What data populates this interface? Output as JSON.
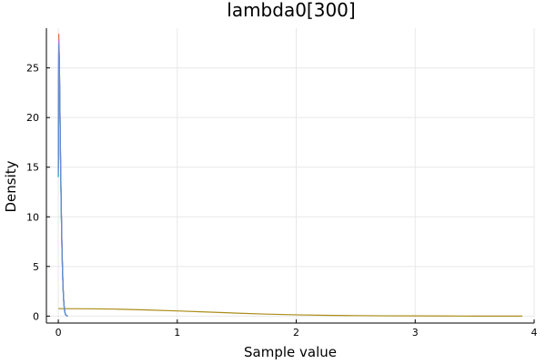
{
  "chart_data": {
    "type": "line",
    "title": "lambda0[300]",
    "xlabel": "Sample value",
    "ylabel": "Density",
    "xlim": [
      -0.1,
      4.0
    ],
    "ylim": [
      -0.7,
      29.0
    ],
    "xticks": [
      0,
      1,
      2,
      3,
      4
    ],
    "yticks": [
      0,
      5,
      10,
      15,
      20,
      25
    ],
    "grid": true,
    "legend": "none",
    "series": [
      {
        "color": "#e26f46",
        "x": [
          0.0,
          0.004,
          0.008,
          0.012,
          0.016,
          0.02,
          0.025,
          0.03,
          0.035,
          0.04,
          0.045,
          0.05,
          0.055,
          0.06,
          0.065,
          0.07,
          0.075,
          0.08
        ],
        "y": [
          15.0,
          28.4,
          26.5,
          23.0,
          19.0,
          15.0,
          11.0,
          7.6,
          5.0,
          3.0,
          1.7,
          0.9,
          0.45,
          0.2,
          0.1,
          0.05,
          0.02,
          0.0
        ]
      },
      {
        "color": "#3da44d",
        "x": [
          0.0,
          0.004,
          0.008,
          0.012,
          0.016,
          0.02,
          0.025,
          0.03,
          0.035,
          0.04,
          0.045,
          0.05,
          0.055,
          0.06,
          0.065,
          0.07,
          0.075,
          0.08
        ],
        "y": [
          14.5,
          27.3,
          26.0,
          22.5,
          18.6,
          14.6,
          10.7,
          7.3,
          4.8,
          2.9,
          1.6,
          0.85,
          0.4,
          0.18,
          0.08,
          0.04,
          0.01,
          0.0
        ]
      },
      {
        "color": "#c271d2",
        "x": [
          0.0,
          0.004,
          0.008,
          0.012,
          0.016,
          0.02,
          0.025,
          0.03,
          0.035,
          0.04,
          0.045,
          0.05,
          0.055,
          0.06,
          0.065,
          0.07,
          0.075,
          0.08
        ],
        "y": [
          14.8,
          27.8,
          26.2,
          22.8,
          18.8,
          14.8,
          10.9,
          7.5,
          4.9,
          3.0,
          1.65,
          0.88,
          0.42,
          0.19,
          0.09,
          0.04,
          0.01,
          0.0
        ]
      },
      {
        "color": "#ac8d18",
        "x": [
          0.0,
          0.25,
          0.5,
          0.75,
          1.0,
          1.25,
          1.5,
          1.75,
          2.0,
          2.25,
          2.5,
          2.75,
          3.0,
          3.25,
          3.5,
          3.75,
          3.9
        ],
        "y": [
          0.75,
          0.74,
          0.7,
          0.62,
          0.52,
          0.41,
          0.3,
          0.2,
          0.13,
          0.08,
          0.05,
          0.03,
          0.02,
          0.01,
          0.0,
          0.0,
          0.0
        ]
      },
      {
        "color": "#00a9ad",
        "x": [
          0.0,
          0.004,
          0.008,
          0.012,
          0.016,
          0.02,
          0.025,
          0.03,
          0.035,
          0.04,
          0.045,
          0.05,
          0.055,
          0.06,
          0.065,
          0.07,
          0.075,
          0.08
        ],
        "y": [
          14.0,
          27.0,
          25.8,
          22.2,
          18.3,
          14.3,
          10.5,
          7.1,
          4.7,
          2.8,
          1.55,
          0.8,
          0.38,
          0.17,
          0.08,
          0.03,
          0.01,
          0.0
        ]
      },
      {
        "color": "#6b8bd6",
        "x": [
          0.0,
          0.004,
          0.008,
          0.012,
          0.016,
          0.02,
          0.025,
          0.03,
          0.035,
          0.04,
          0.045,
          0.05,
          0.055,
          0.06,
          0.065,
          0.07,
          0.075,
          0.08
        ],
        "y": [
          14.3,
          27.5,
          26.1,
          22.6,
          18.5,
          14.5,
          10.6,
          7.2,
          4.75,
          2.85,
          1.58,
          0.82,
          0.39,
          0.17,
          0.08,
          0.03,
          0.01,
          0.0
        ]
      }
    ]
  }
}
